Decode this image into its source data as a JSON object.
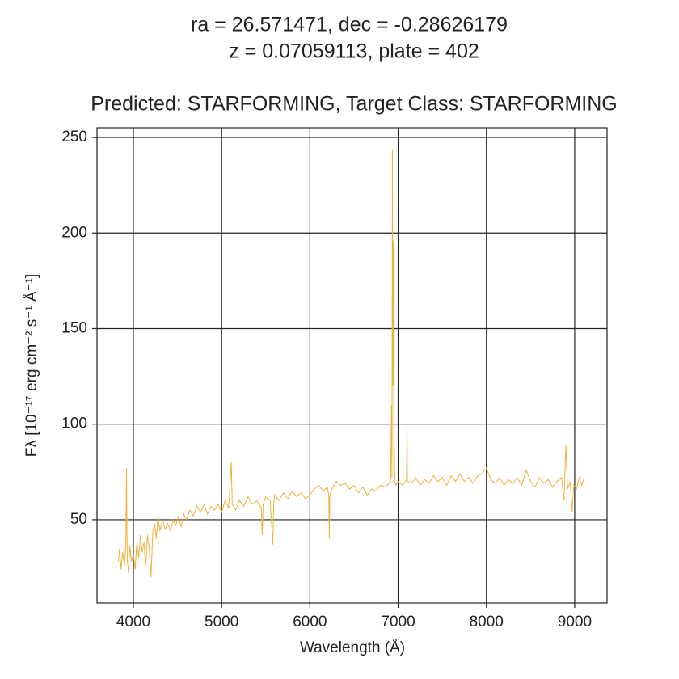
{
  "chart_data": {
    "type": "line",
    "title": [
      "ra = 26.571471, dec = -0.28626179",
      "z = 0.07059113, plate = 402",
      "Predicted: STARFORMING, Target Class: STARFORMING"
    ],
    "xlabel": "Wavelength (Å)",
    "ylabel": "Fλ [10⁻¹⁷ erg cm⁻² s⁻¹ Å⁻¹]",
    "color": "#f0b13c",
    "grid": true,
    "xlim": [
      3588,
      9367
    ],
    "ylim": [
      6.4,
      255.1
    ],
    "xticks": [
      4000,
      5000,
      6000,
      7000,
      8000,
      9000
    ],
    "yticks": [
      50,
      100,
      150,
      200,
      250
    ],
    "x": [
      3830,
      3845,
      3860,
      3880,
      3900,
      3915,
      3922,
      3930,
      3945,
      3960,
      3980,
      4000,
      4020,
      4040,
      4060,
      4080,
      4100,
      4120,
      4140,
      4160,
      4180,
      4200,
      4220,
      4240,
      4260,
      4280,
      4300,
      4330,
      4360,
      4390,
      4420,
      4450,
      4480,
      4510,
      4540,
      4570,
      4600,
      4640,
      4680,
      4720,
      4760,
      4800,
      4840,
      4880,
      4920,
      4960,
      5000,
      5040,
      5080,
      5110,
      5120,
      5160,
      5200,
      5250,
      5300,
      5350,
      5400,
      5450,
      5460,
      5470,
      5500,
      5550,
      5580,
      5590,
      5600,
      5650,
      5700,
      5750,
      5800,
      5850,
      5900,
      5950,
      6000,
      6050,
      6100,
      6150,
      6200,
      6215,
      6220,
      6225,
      6250,
      6300,
      6350,
      6400,
      6450,
      6500,
      6550,
      6600,
      6650,
      6700,
      6750,
      6800,
      6850,
      6900,
      6915,
      6925,
      6930,
      6935,
      6940,
      6943,
      6948,
      6952,
      6956,
      6962,
      6975,
      7000,
      7050,
      7095,
      7100,
      7105,
      7150,
      7200,
      7250,
      7300,
      7350,
      7400,
      7450,
      7500,
      7550,
      7600,
      7650,
      7700,
      7750,
      7800,
      7850,
      7900,
      7950,
      8000,
      8050,
      8100,
      8150,
      8200,
      8250,
      8300,
      8350,
      8400,
      8450,
      8500,
      8550,
      8600,
      8650,
      8700,
      8750,
      8800,
      8850,
      8880,
      8900,
      8920,
      8950,
      8970,
      8990,
      9020,
      9050,
      9080,
      9100
    ],
    "values": [
      28,
      35,
      24,
      33,
      26,
      38,
      77,
      30,
      22,
      36,
      28,
      32,
      24,
      38,
      30,
      42,
      33,
      38,
      26,
      42,
      35,
      20,
      44,
      48,
      40,
      52,
      44,
      50,
      45,
      48,
      44,
      50,
      47,
      52,
      46,
      53,
      50,
      55,
      52,
      57,
      54,
      58,
      53,
      57,
      55,
      58,
      54,
      60,
      56,
      80,
      58,
      55,
      60,
      57,
      62,
      58,
      60,
      56,
      42,
      58,
      62,
      60,
      37,
      58,
      63,
      60,
      64,
      61,
      65,
      62,
      64,
      61,
      63,
      66,
      68,
      65,
      67,
      62,
      40,
      63,
      66,
      70,
      68,
      69,
      66,
      68,
      64,
      67,
      63,
      66,
      65,
      68,
      67,
      69,
      70,
      110,
      72,
      244,
      120,
      196,
      160,
      75,
      90,
      70,
      68,
      70,
      68,
      71,
      100,
      70,
      69,
      72,
      68,
      71,
      69,
      73,
      70,
      72,
      68,
      73,
      70,
      74,
      70,
      72,
      69,
      73,
      74,
      77,
      71,
      69,
      72,
      68,
      71,
      69,
      72,
      68,
      76,
      70,
      67,
      72,
      69,
      71,
      67,
      70,
      72,
      60,
      89,
      66,
      70,
      54,
      68,
      66,
      72,
      68,
      71
    ]
  }
}
